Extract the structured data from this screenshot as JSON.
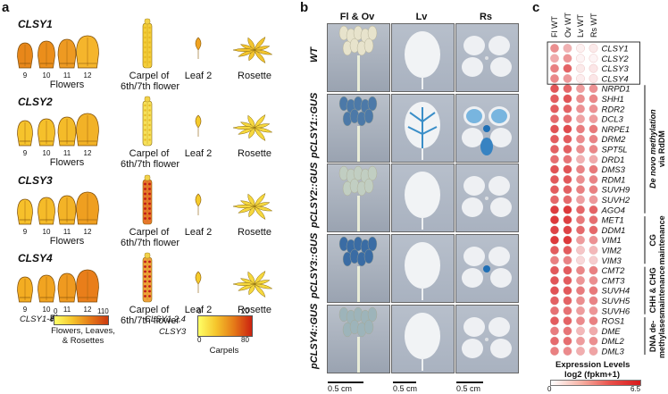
{
  "panel_a": {
    "letter": "a",
    "rows": [
      {
        "gene": "CLSY1",
        "flower_fill": [
          "#e8871a",
          "#eb8e1b",
          "#ee9a22",
          "#f5b52c"
        ],
        "carpel": "#f5cf3a",
        "carpel_dots": false
      },
      {
        "gene": "CLSY2",
        "flower_fill": [
          "#f6c32c",
          "#f5c02b",
          "#f4bb29",
          "#f2b227"
        ],
        "carpel": "#f7e15a",
        "carpel_dots": false
      },
      {
        "gene": "CLSY3",
        "flower_fill": [
          "#f6c02b",
          "#f5bb29",
          "#f3b327",
          "#ef9f20"
        ],
        "carpel": "#e8762b",
        "carpel_dots": true
      },
      {
        "gene": "CLSY4",
        "flower_fill": [
          "#f3ad22",
          "#f1a421",
          "#ef9a20",
          "#e97e1a"
        ],
        "carpel": "#f0a23a",
        "carpel_dots": true
      }
    ],
    "flower_numbers": [
      "9",
      "10",
      "11",
      "12"
    ],
    "flowers_label": "Flowers",
    "carpel_label_1": "Carpel of",
    "carpel_label_2": "6th/7th flower",
    "leaf_label": "Leaf 2",
    "rosette_label": "Rosette",
    "legend1": {
      "gene": "CLSY1-4",
      "min": "0",
      "max": "110",
      "caption_1": "Flowers, Leaves,",
      "caption_2": "& Rosettes"
    },
    "legend2": {
      "gene_a": "CLSY1,2,4",
      "min_a": "0",
      "max_a": "20",
      "gene_b": "CLSY3",
      "min_b": "0",
      "max_b": "80",
      "caption": "Carpels"
    }
  },
  "panel_b": {
    "letter": "b",
    "col_headers": [
      "Fl & Ov",
      "Lv",
      "Rs"
    ],
    "row_labels": [
      "WT",
      "pCLSY1::GUS",
      "pCLSY2::GUS",
      "pCLSY3::GUS",
      "pCLSY4::GUS"
    ],
    "scale_labels": [
      "0.5 cm",
      "0.5 cm",
      "0.5 cm"
    ]
  },
  "panel_c": {
    "letter": "c",
    "col_headers": [
      "Fl WT",
      "Ov WT",
      "Lv WT",
      "Rs WT"
    ],
    "genes": [
      "CLSY1",
      "CLSY2",
      "CLSY3",
      "CLSY4",
      "NRPD1",
      "SHH1",
      "RDR2",
      "DCL3",
      "NRPE1",
      "DRM2",
      "SPT5L",
      "DRD1",
      "DMS3",
      "RDM1",
      "SUVH9",
      "SUVH2",
      "AGO4",
      "MET1",
      "DDM1",
      "VIM1",
      "VIM2",
      "VIM3",
      "CMT2",
      "CMT3",
      "SUVH4",
      "SUVH5",
      "SUVH6",
      "ROS1",
      "DME",
      "DML2",
      "DML3"
    ],
    "values": [
      [
        3.2,
        2.2,
        0.4,
        0.6
      ],
      [
        2.4,
        3.0,
        0.3,
        0.3
      ],
      [
        3.6,
        4.4,
        0.6,
        0.7
      ],
      [
        3.4,
        2.9,
        0.5,
        0.7
      ],
      [
        4.8,
        4.3,
        2.8,
        3.1
      ],
      [
        4.6,
        4.8,
        3.2,
        3.4
      ],
      [
        4.6,
        4.4,
        3.1,
        3.1
      ],
      [
        4.2,
        4.0,
        2.6,
        2.8
      ],
      [
        4.9,
        5.1,
        3.7,
        3.8
      ],
      [
        4.6,
        4.6,
        3.3,
        3.5
      ],
      [
        4.5,
        4.5,
        3.2,
        3.4
      ],
      [
        4.1,
        3.9,
        2.2,
        2.4
      ],
      [
        4.9,
        4.8,
        3.5,
        3.8
      ],
      [
        4.7,
        4.7,
        3.2,
        3.5
      ],
      [
        4.6,
        4.5,
        3.6,
        3.6
      ],
      [
        4.3,
        4.2,
        2.7,
        2.9
      ],
      [
        5.5,
        5.6,
        4.3,
        4.4
      ],
      [
        5.6,
        5.4,
        3.8,
        4.1
      ],
      [
        5.3,
        5.3,
        4.2,
        4.3
      ],
      [
        5.6,
        5.6,
        2.8,
        3.1
      ],
      [
        4.6,
        4.6,
        1.6,
        2.0
      ],
      [
        3.6,
        3.5,
        1.1,
        1.4
      ],
      [
        4.7,
        4.6,
        3.4,
        3.6
      ],
      [
        4.8,
        4.6,
        3.0,
        3.2
      ],
      [
        4.9,
        4.7,
        3.7,
        3.8
      ],
      [
        4.5,
        4.4,
        3.2,
        3.5
      ],
      [
        4.0,
        4.0,
        2.8,
        3.0
      ],
      [
        4.6,
        4.4,
        3.3,
        3.6
      ],
      [
        3.7,
        3.9,
        2.0,
        2.4
      ],
      [
        4.2,
        4.1,
        2.8,
        3.2
      ],
      [
        3.6,
        3.3,
        2.3,
        2.6
      ]
    ],
    "categories": [
      {
        "label_1": "De novo methylation",
        "label_2": "via RdDM",
        "start": 4,
        "end": 16
      },
      {
        "label_1": "CG",
        "label_2": "maintenance",
        "start": 17,
        "end": 21
      },
      {
        "label_1": "CHH & CHG",
        "label_2": "maintenance",
        "start": 22,
        "end": 26
      },
      {
        "label_1": "DNA de-",
        "label_2": "methylases",
        "start": 27,
        "end": 30
      }
    ],
    "legend_title": "Expression Levels",
    "legend_units": "log2 (fpkm+1)",
    "legend_min": "0",
    "legend_max": "6.5",
    "color_low": "#ffffff",
    "color_high": "#d7191c"
  }
}
